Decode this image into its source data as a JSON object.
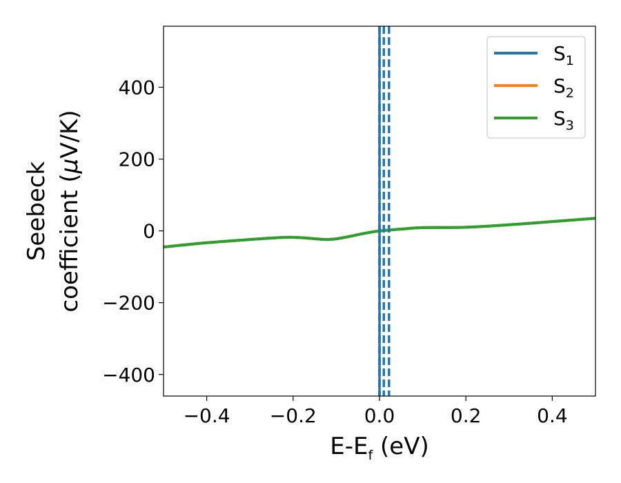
{
  "chart_data": {
    "type": "line",
    "xlabel": {
      "main": "E-E",
      "sub": "f",
      "unit": " (eV)"
    },
    "ylabel": {
      "line1": "Seebeck",
      "line2": "coefficient  (",
      "mu": "μ",
      "unit": "V/K)"
    },
    "xlim": [
      -0.5,
      0.5
    ],
    "ylim": [
      -460,
      570
    ],
    "xticks": [
      -0.4,
      -0.2,
      0.0,
      0.2,
      0.4
    ],
    "xtick_labels": [
      "−0.4",
      "−0.2",
      "0.0",
      "0.2",
      "0.4"
    ],
    "yticks": [
      -400,
      -200,
      0,
      200,
      400
    ],
    "ytick_labels": [
      "−400",
      "−200",
      "0",
      "200",
      "400"
    ],
    "grid": false,
    "legend_position": "top-right",
    "legend": [
      {
        "base": "S",
        "sub": "1",
        "color": "#1f77b4"
      },
      {
        "base": "S",
        "sub": "2",
        "color": "#ff7f0e"
      },
      {
        "base": "S",
        "sub": "3",
        "color": "#2ca02c"
      }
    ],
    "series": [
      {
        "name": "S1",
        "color": "#1f77b4",
        "x": [
          -0.5,
          -0.4,
          -0.3,
          -0.22,
          -0.18,
          -0.12,
          -0.08,
          -0.04,
          0.0,
          0.05,
          0.1,
          0.2,
          0.3,
          0.4,
          0.5
        ],
        "y": [
          -45,
          -33,
          -24,
          -18,
          -19,
          -24,
          -18,
          -8,
          0,
          5,
          9,
          10,
          17,
          26,
          35
        ]
      },
      {
        "name": "S2",
        "color": "#ff7f0e",
        "x": [
          -0.5,
          -0.4,
          -0.3,
          -0.22,
          -0.18,
          -0.12,
          -0.08,
          -0.04,
          0.0,
          0.05,
          0.1,
          0.2,
          0.3,
          0.4,
          0.5
        ],
        "y": [
          -45,
          -33,
          -24,
          -18,
          -19,
          -24,
          -18,
          -8,
          0,
          5,
          9,
          10,
          17,
          26,
          35
        ]
      },
      {
        "name": "S3",
        "color": "#2ca02c",
        "x": [
          -0.5,
          -0.4,
          -0.3,
          -0.22,
          -0.18,
          -0.12,
          -0.08,
          -0.04,
          0.0,
          0.05,
          0.1,
          0.2,
          0.3,
          0.4,
          0.5
        ],
        "y": [
          -45,
          -33,
          -24,
          -18,
          -19,
          -24,
          -18,
          -8,
          0,
          5,
          9,
          10,
          17,
          26,
          35
        ]
      }
    ],
    "vertical_lines": [
      {
        "x": 0.0,
        "color": "#000000",
        "style": "dashed"
      },
      {
        "x": 0.0,
        "color": "#1f77b4",
        "style": "solid"
      },
      {
        "x": 0.01,
        "color": "#1f77b4",
        "style": "dashed"
      },
      {
        "x": 0.022,
        "color": "#1f77b4",
        "style": "dashed"
      }
    ]
  }
}
